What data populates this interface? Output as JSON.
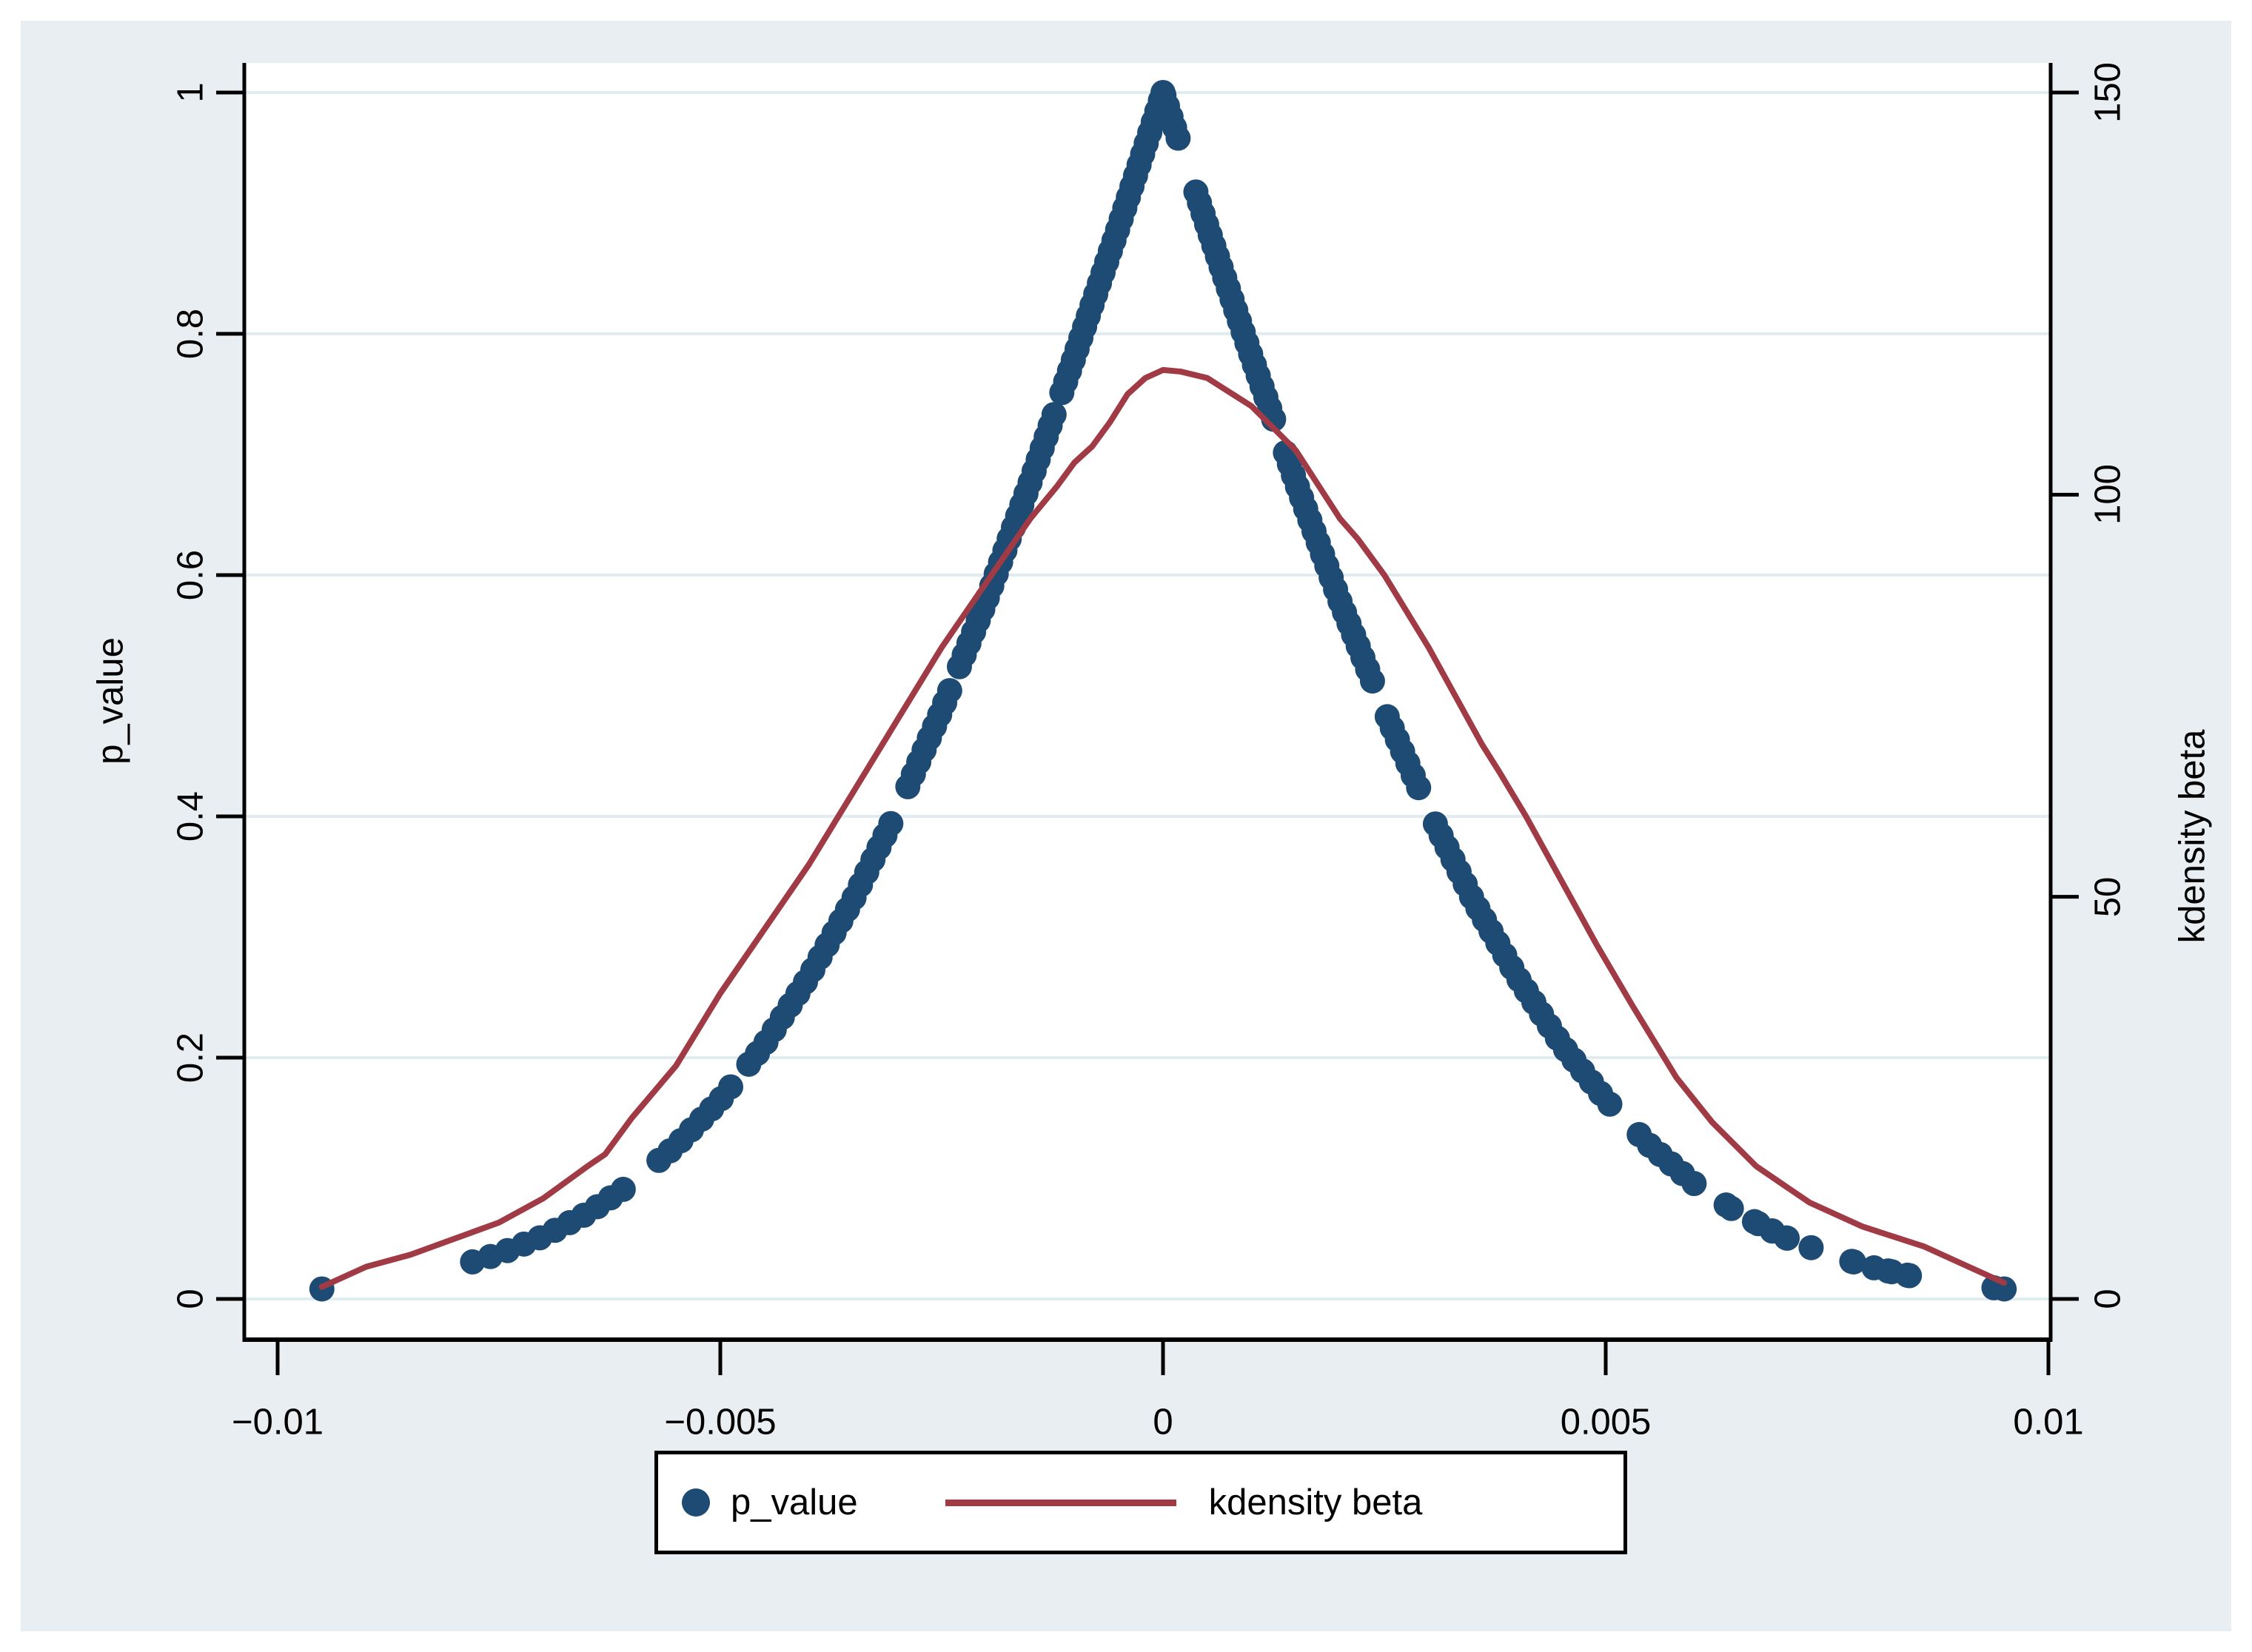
{
  "figure": {
    "outer_margin_color": "#ffffff",
    "background_color": "#e8eef2",
    "plot_background": "#ffffff",
    "gridline_color": "#e0ebf2",
    "axis_color": "#000000"
  },
  "axes": {
    "x": {
      "tick_labels": [
        "−0.01",
        "−0.005",
        "0",
        "0.005",
        "0.01"
      ],
      "tick_values": [
        -0.01,
        -0.005,
        0,
        0.005,
        0.01
      ],
      "title": ""
    },
    "left": {
      "title": "p_value",
      "tick_labels": [
        "0",
        "0.2",
        "0.4",
        "0.6",
        "0.8",
        "1"
      ],
      "tick_values": [
        0,
        0.2,
        0.4,
        0.6,
        0.8,
        1
      ]
    },
    "right": {
      "title": "kdensity beta",
      "tick_labels": [
        "0",
        "50",
        "100",
        "150"
      ],
      "tick_values": [
        0,
        50,
        100,
        150
      ]
    }
  },
  "legend": {
    "items": [
      {
        "label": "p_value",
        "marker": "dot-icon",
        "color": "#1d4b73"
      },
      {
        "label": "kdensity beta",
        "marker": "line-icon",
        "color": "#a03b45"
      }
    ]
  },
  "chart_data": {
    "type": "scatter+line",
    "xlabel": "",
    "left_ylabel": "p_value",
    "right_ylabel": "kdensity beta",
    "x_ticks": [
      -0.01,
      -0.005,
      0,
      0.005,
      0.01
    ],
    "left_yticks": [
      0,
      0.2,
      0.4,
      0.6,
      0.8,
      1
    ],
    "right_yticks": [
      0,
      50,
      100,
      150
    ],
    "grid": "horizontal",
    "legend_position": "bottom-center",
    "series": [
      {
        "name": "p_value",
        "type": "scatter",
        "axis": "left",
        "color": "#1d4b73",
        "marker_radius_px": 17,
        "x_range": [
          -0.0095,
          0.0095
        ],
        "tent_anchors_abs_x_to_p": [
          [
            0,
            1.0
          ],
          [
            0.0005,
            0.889
          ],
          [
            0.001,
            0.781
          ],
          [
            0.0015,
            0.677
          ],
          [
            0.002,
            0.578
          ],
          [
            0.0025,
            0.488
          ],
          [
            0.003,
            0.405
          ],
          [
            0.0035,
            0.331
          ],
          [
            0.004,
            0.267
          ],
          [
            0.0045,
            0.211
          ],
          [
            0.005,
            0.165
          ],
          [
            0.0055,
            0.127
          ],
          [
            0.006,
            0.0956
          ],
          [
            0.0065,
            0.071
          ],
          [
            0.007,
            0.0518
          ],
          [
            0.0075,
            0.0373
          ],
          [
            0.008,
            0.0263
          ],
          [
            0.0085,
            0.0182
          ],
          [
            0.009,
            0.0124
          ],
          [
            0.0095,
            0.0083
          ]
        ],
        "gaps": [
          [
            -0.00948,
            -0.0078
          ],
          [
            -0.00738,
            -0.00726
          ],
          [
            -0.0067,
            -0.00656
          ],
          [
            -0.006,
            -0.00572
          ],
          [
            -0.00488,
            -0.00473
          ],
          [
            -0.00403,
            -0.00396
          ],
          [
            -0.00307,
            -0.00293
          ],
          [
            -0.0024,
            -0.00233
          ],
          [
            -0.00122,
            -0.00116
          ],
          [
            0.00018,
            0.00034
          ],
          [
            0.00128,
            0.00136
          ],
          [
            0.0024,
            0.00248
          ],
          [
            0.00292,
            0.00306
          ],
          [
            0.0051,
            0.0053
          ],
          [
            0.0061,
            0.00628
          ],
          [
            0.00645,
            0.00663
          ],
          [
            0.0071,
            0.00726
          ],
          [
            0.00738,
            0.00772
          ],
          [
            0.00788,
            0.00798
          ],
          [
            0.00808,
            0.00818
          ],
          [
            0.00828,
            0.00838
          ],
          [
            0.00848,
            0.00938
          ]
        ],
        "extra_x": [
          0,
          0.00636,
          0.00668,
          0.00688,
          0.00704,
          0.00732,
          0.0078,
          0.00803,
          0.00823,
          0.00843,
          0.0095
        ]
      },
      {
        "name": "kdensity beta",
        "type": "line",
        "axis": "right",
        "color": "#a03b45",
        "stroke_px": 8,
        "points": [
          [
            -0.0095,
            1.5
          ],
          [
            -0.009,
            4
          ],
          [
            -0.0085,
            5.5
          ],
          [
            -0.008,
            7.5
          ],
          [
            -0.0075,
            9.5
          ],
          [
            -0.007,
            12.5
          ],
          [
            -0.0065,
            16.5
          ],
          [
            -0.0063,
            18
          ],
          [
            -0.006,
            22.5
          ],
          [
            -0.0055,
            29
          ],
          [
            -0.005,
            38
          ],
          [
            -0.0045,
            46
          ],
          [
            -0.004,
            54
          ],
          [
            -0.0035,
            63
          ],
          [
            -0.003,
            72
          ],
          [
            -0.0025,
            81
          ],
          [
            -0.002,
            89
          ],
          [
            -0.0015,
            97
          ],
          [
            -0.0012,
            101
          ],
          [
            -0.001,
            104
          ],
          [
            -0.0008,
            106
          ],
          [
            -0.0006,
            109
          ],
          [
            -0.0004,
            112.5
          ],
          [
            -0.0002,
            114.5
          ],
          [
            0,
            115.5
          ],
          [
            0.0002,
            115.3
          ],
          [
            0.0005,
            114.5
          ],
          [
            0.001,
            111
          ],
          [
            0.0015,
            105.5
          ],
          [
            0.002,
            97
          ],
          [
            0.0022,
            94.5
          ],
          [
            0.0025,
            90
          ],
          [
            0.003,
            81
          ],
          [
            0.0033,
            75
          ],
          [
            0.0036,
            69
          ],
          [
            0.0038,
            65.5
          ],
          [
            0.0041,
            60
          ],
          [
            0.0045,
            52
          ],
          [
            0.0049,
            44
          ],
          [
            0.0053,
            36.5
          ],
          [
            0.0058,
            27.5
          ],
          [
            0.0062,
            22
          ],
          [
            0.0067,
            16.5
          ],
          [
            0.0073,
            12
          ],
          [
            0.0079,
            9
          ],
          [
            0.0086,
            6.5
          ],
          [
            0.009,
            4.5
          ],
          [
            0.0095,
            2
          ]
        ]
      }
    ]
  }
}
